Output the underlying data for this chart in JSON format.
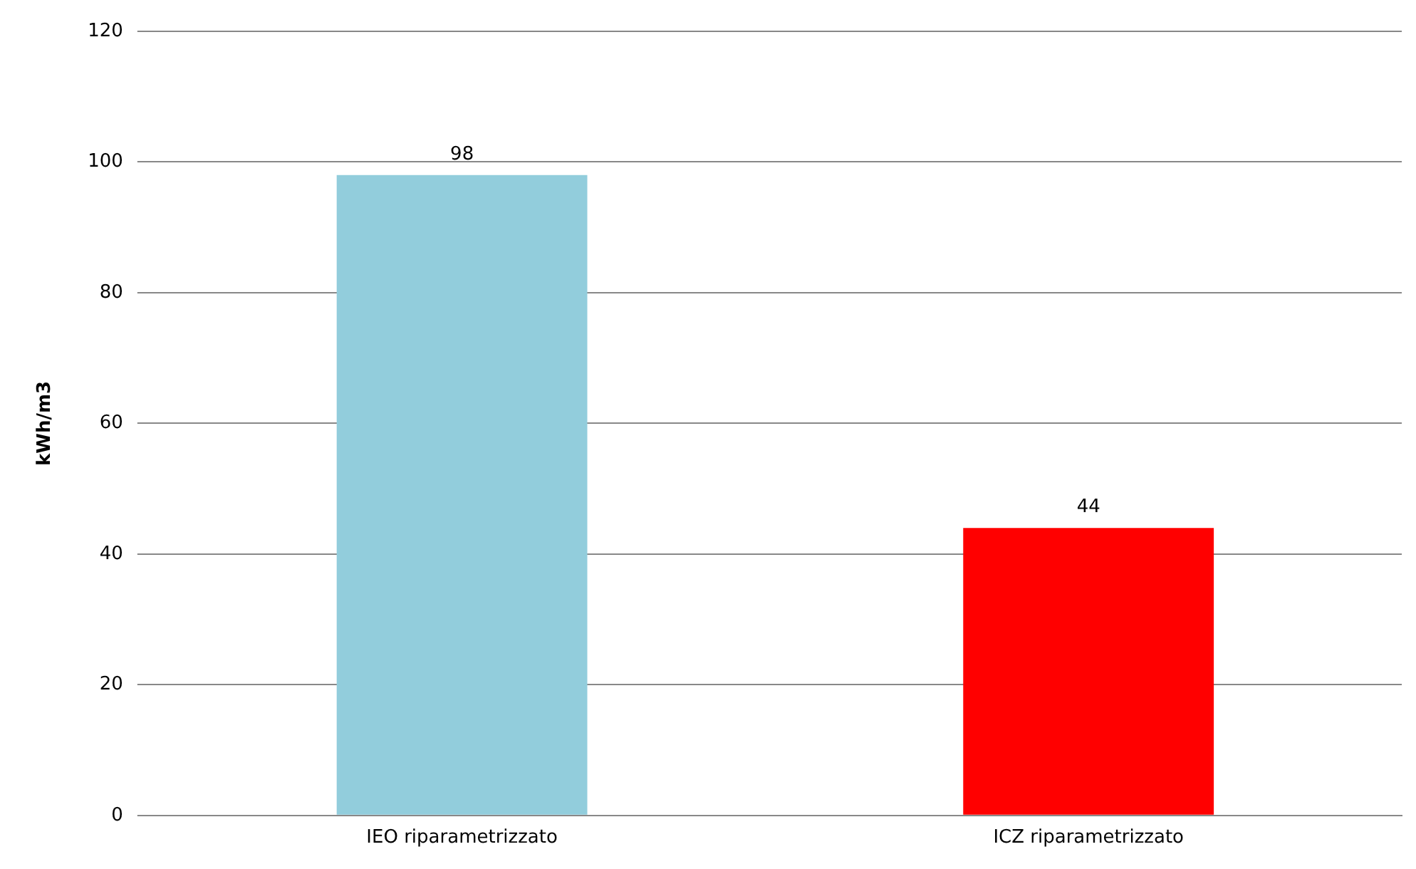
{
  "chart_data": {
    "type": "bar",
    "ylabel": "kWh/m3",
    "categories": [
      "IEO riparametrizzato",
      "ICZ riparametrizzato"
    ],
    "values": [
      98,
      44
    ],
    "colors": [
      "#92cddc",
      "#ff0000"
    ],
    "ylim": [
      0,
      120
    ],
    "yticks": [
      0,
      20,
      40,
      60,
      80,
      100,
      120
    ],
    "grid": "y",
    "data_labels": true,
    "legend": false
  }
}
